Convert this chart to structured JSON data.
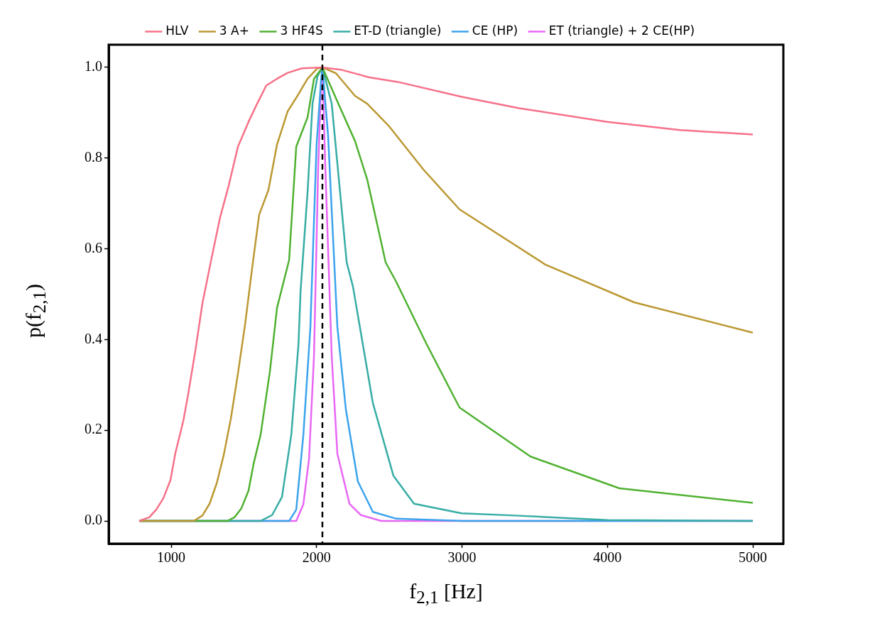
{
  "chart_data": {
    "type": "line",
    "xlabel": "f$_{2,1}$ [Hz]",
    "ylabel": "p(f$_{2,1}$)",
    "xlim": [
      570,
      5210
    ],
    "ylim": [
      -0.05,
      1.05
    ],
    "xticks": [
      1000,
      2000,
      3000,
      4000,
      5000
    ],
    "yticks": [
      {
        "value": 0,
        "label": "0.0"
      },
      0.2,
      0.4,
      0.6,
      0.8,
      {
        "value": 1,
        "label": "1.0"
      }
    ],
    "grid": false,
    "legend": "top",
    "ref_lines": [
      {
        "axis": "x",
        "value": 2040,
        "color": "#000000",
        "line_style": "dashed"
      }
    ],
    "series": [
      {
        "name": "HLV",
        "color": "#f77189",
        "x": [
          780,
          849,
          897,
          946,
          995,
          1029,
          1083,
          1117,
          1166,
          1215,
          1278,
          1337,
          1396,
          1459,
          1532,
          1591,
          1654,
          1728,
          1801,
          1899,
          2040,
          2167,
          2362,
          2558,
          3000,
          3393,
          4000,
          4500,
          5000
        ],
        "values": [
          0,
          0.008,
          0.025,
          0.05,
          0.09,
          0.15,
          0.22,
          0.28,
          0.375,
          0.48,
          0.58,
          0.67,
          0.74,
          0.825,
          0.88,
          0.92,
          0.96,
          0.975,
          0.988,
          0.998,
          1.0,
          0.995,
          0.978,
          0.968,
          0.935,
          0.91,
          0.88,
          0.862,
          0.852
        ]
      },
      {
        "name": "3 A+",
        "color": "#bb9832",
        "x": [
          780,
          1156,
          1215,
          1264,
          1313,
          1361,
          1410,
          1459,
          1508,
          1557,
          1605,
          1669,
          1728,
          1801,
          1860,
          1938,
          2006,
          2040,
          2133,
          2265,
          2348,
          2494,
          2734,
          2983,
          3574,
          4184,
          5000
        ],
        "values": [
          0,
          0,
          0.012,
          0.038,
          0.083,
          0.145,
          0.225,
          0.325,
          0.433,
          0.558,
          0.675,
          0.73,
          0.83,
          0.903,
          0.933,
          0.975,
          0.998,
          1.0,
          0.987,
          0.937,
          0.92,
          0.872,
          0.775,
          0.687,
          0.565,
          0.482,
          0.415
        ]
      },
      {
        "name": "3 HF4S",
        "color": "#50b131",
        "x": [
          780,
          1386,
          1435,
          1483,
          1532,
          1566,
          1615,
          1679,
          1728,
          1811,
          1860,
          1938,
          1982,
          2011,
          2040,
          2143,
          2265,
          2348,
          2475,
          2548,
          2753,
          2983,
          3471,
          4082,
          5000
        ],
        "values": [
          0,
          0,
          0.008,
          0.028,
          0.067,
          0.125,
          0.19,
          0.33,
          0.47,
          0.575,
          0.825,
          0.89,
          0.975,
          0.987,
          1.0,
          0.925,
          0.837,
          0.753,
          0.57,
          0.527,
          0.392,
          0.25,
          0.142,
          0.072,
          0.04
        ]
      },
      {
        "name": "ET-D (triangle)",
        "color": "#36ada4",
        "x": [
          780,
          1615,
          1694,
          1762,
          1826,
          1875,
          1890,
          1938,
          1972,
          2006,
          2040,
          2104,
          2207,
          2250,
          2387,
          2528,
          2670,
          2997,
          3364,
          4000,
          5000
        ],
        "values": [
          0,
          0,
          0.013,
          0.053,
          0.19,
          0.387,
          0.508,
          0.725,
          0.92,
          0.98,
          1.0,
          0.92,
          0.57,
          0.517,
          0.26,
          0.1,
          0.038,
          0.017,
          0.012,
          0.002,
          0
        ]
      },
      {
        "name": "CE (HP)",
        "color": "#3ba3ec",
        "x": [
          780,
          1811,
          1860,
          1909,
          1957,
          2000,
          2030,
          2040,
          2079,
          2143,
          2201,
          2284,
          2387,
          2548,
          3000,
          5000
        ],
        "values": [
          0,
          0,
          0.025,
          0.19,
          0.425,
          0.83,
          0.968,
          1.0,
          0.85,
          0.427,
          0.247,
          0.087,
          0.02,
          0.005,
          0,
          0
        ]
      },
      {
        "name": "ET (triangle) + 2 CE(HP)",
        "color": "#e866f4",
        "x": [
          780,
          1860,
          1909,
          1948,
          1982,
          2011,
          2030,
          2040,
          2060,
          2104,
          2143,
          2226,
          2304,
          2445,
          5000
        ],
        "values": [
          0,
          0,
          0.037,
          0.137,
          0.363,
          0.78,
          0.953,
          1.0,
          0.78,
          0.363,
          0.148,
          0.038,
          0.013,
          0,
          0
        ]
      }
    ]
  }
}
